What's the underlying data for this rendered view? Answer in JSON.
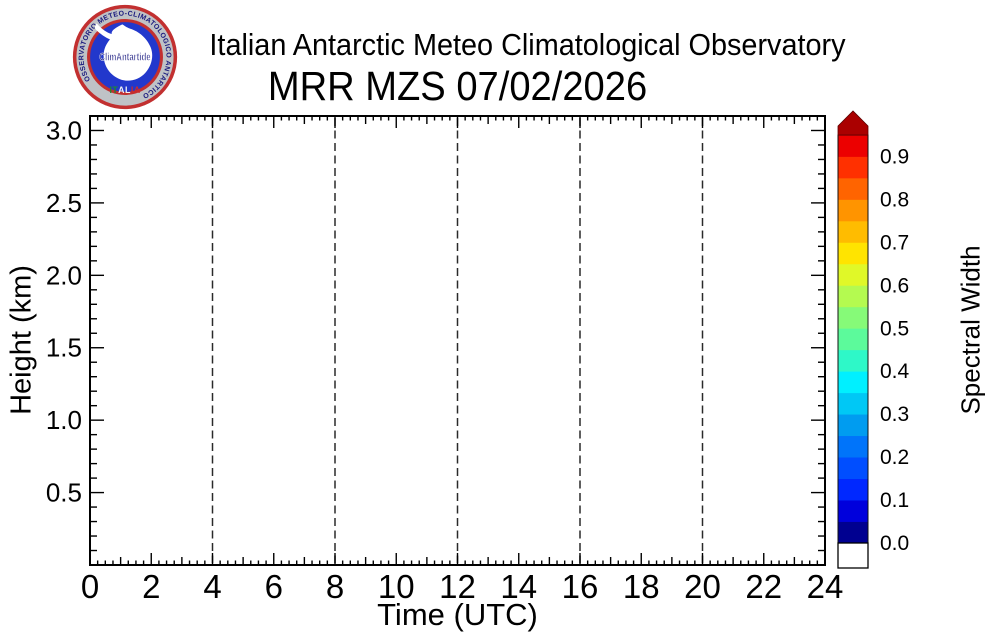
{
  "page": {
    "background": "#ffffff"
  },
  "header": {
    "suptitle": "Italian Antarctic Meteo Climatological Observatory",
    "title": "MRR MZS 07/02/2026",
    "logo": {
      "ring_text": "OSSERVATORIO METEO-CLIMATOLOGICO ANTARTICO",
      "banner_text": "ClimAntartide",
      "bottom_text": "ITALIA",
      "colors": {
        "outer_ring": "#C23030",
        "ring_bg": "#BFC2C6",
        "inner_ring": "#C23030",
        "disk": "#2238CC",
        "continent": "#FFFFFF",
        "ring_text": "#1A1A7E",
        "banner_text": "#16167E",
        "italia_flag": [
          "#1E8A2E",
          "#F2F2F2",
          "#CC2A2A"
        ]
      }
    }
  },
  "chart_data": {
    "type": "heatmap",
    "title": "MRR MZS 07/02/2026",
    "xlabel": "Time (UTC)",
    "ylabel": "Height (km)",
    "xlim": [
      0,
      24
    ],
    "ylim": [
      0,
      3.1
    ],
    "x_tick_labels": [
      "0",
      "2",
      "4",
      "6",
      "8",
      "10",
      "12",
      "14",
      "16",
      "18",
      "20",
      "22",
      "24"
    ],
    "x_major_step_hours": 2,
    "x_medium_step_hours": 1,
    "x_minor_step_hours": 0.25,
    "y_tick_labels": [
      "0.5",
      "1.0",
      "1.5",
      "2.0",
      "2.5",
      "3.0"
    ],
    "y_major_step_km": 0.5,
    "y_minor_step_km": 0.1,
    "vertical_gridlines_hours": [
      4,
      8,
      12,
      16,
      20
    ],
    "grid_style": "dashed",
    "grid_color": "#2a2a2a",
    "frame_color": "#000000",
    "values": [],
    "colorbar": {
      "label": "Spectral Width",
      "tick_labels": [
        "0.0",
        "0.1",
        "0.2",
        "0.3",
        "0.4",
        "0.5",
        "0.6",
        "0.7",
        "0.8",
        "0.9"
      ],
      "band_min": 0.0,
      "band_max": 0.95,
      "band_step": 0.05,
      "band_colors_bottom_to_top": [
        "#000090",
        "#0000DC",
        "#0028FF",
        "#004EFF",
        "#0074FA",
        "#009CF0",
        "#00C8F5",
        "#00F0FF",
        "#2EF8C8",
        "#5CFA9B",
        "#86FA78",
        "#B4FA50",
        "#E0F828",
        "#FFE400",
        "#FFBC00",
        "#FF9400",
        "#FF6400",
        "#FF3000",
        "#EC0000"
      ],
      "overflow_arrow_color": "#AA0000",
      "underflow_color": "#FFFFFF",
      "border_color": "#111111"
    }
  }
}
